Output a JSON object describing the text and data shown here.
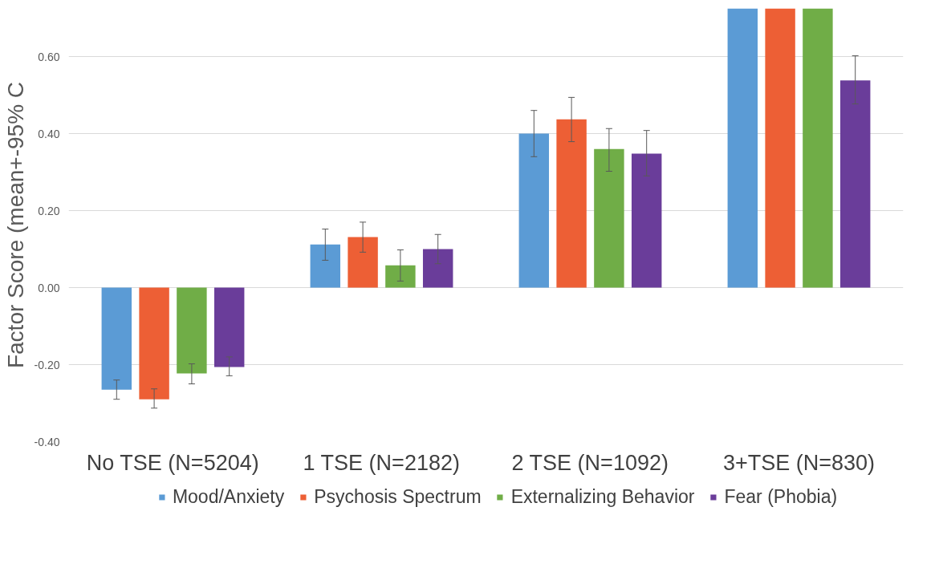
{
  "chart_data": {
    "type": "bar",
    "ylabel": "Factor Score (mean+-95% C",
    "categories": [
      "No TSE (N=5204)",
      "1 TSE (N=2182)",
      "2 TSE (N=1092)",
      "3+TSE (N=830)"
    ],
    "series": [
      {
        "name": "Mood/Anxiety",
        "color": "#5b9bd5",
        "values": [
          -0.265,
          0.112,
          0.4,
          0.725
        ],
        "errors": [
          [
            -0.29,
            -0.24
          ],
          [
            0.071,
            0.152
          ],
          [
            0.34,
            0.46
          ],
          null
        ]
      },
      {
        "name": "Psychosis Spectrum",
        "color": "#ed5f35",
        "values": [
          -0.29,
          0.131,
          0.437,
          0.725
        ],
        "errors": [
          [
            -0.313,
            -0.263
          ],
          [
            0.092,
            0.17
          ],
          [
            0.379,
            0.494
          ],
          null
        ]
      },
      {
        "name": "Externalizing Behavior",
        "color": "#70ad47",
        "values": [
          -0.223,
          0.058,
          0.36,
          0.725
        ],
        "errors": [
          [
            -0.25,
            -0.198
          ],
          [
            0.017,
            0.098
          ],
          [
            0.302,
            0.413
          ],
          null
        ]
      },
      {
        "name": "Fear (Phobia)",
        "color": "#6a3d9a",
        "values": [
          -0.206,
          0.1,
          0.348,
          0.538
        ],
        "errors": [
          [
            -0.229,
            -0.18
          ],
          [
            0.062,
            0.138
          ],
          [
            0.29,
            0.408
          ],
          [
            0.477,
            0.602
          ]
        ]
      }
    ],
    "ylim": [
      -0.4,
      0.725
    ],
    "yticks": [
      {
        "value": -0.4,
        "label": "-0.40"
      },
      {
        "value": -0.2,
        "label": "-0.20"
      },
      {
        "value": 0,
        "label": "0.00"
      },
      {
        "value": 0.2,
        "label": "0.20"
      },
      {
        "value": 0.4,
        "label": "0.40"
      },
      {
        "value": 0.6,
        "label": "0.60"
      }
    ],
    "grid": "y",
    "legend": "bottom"
  }
}
